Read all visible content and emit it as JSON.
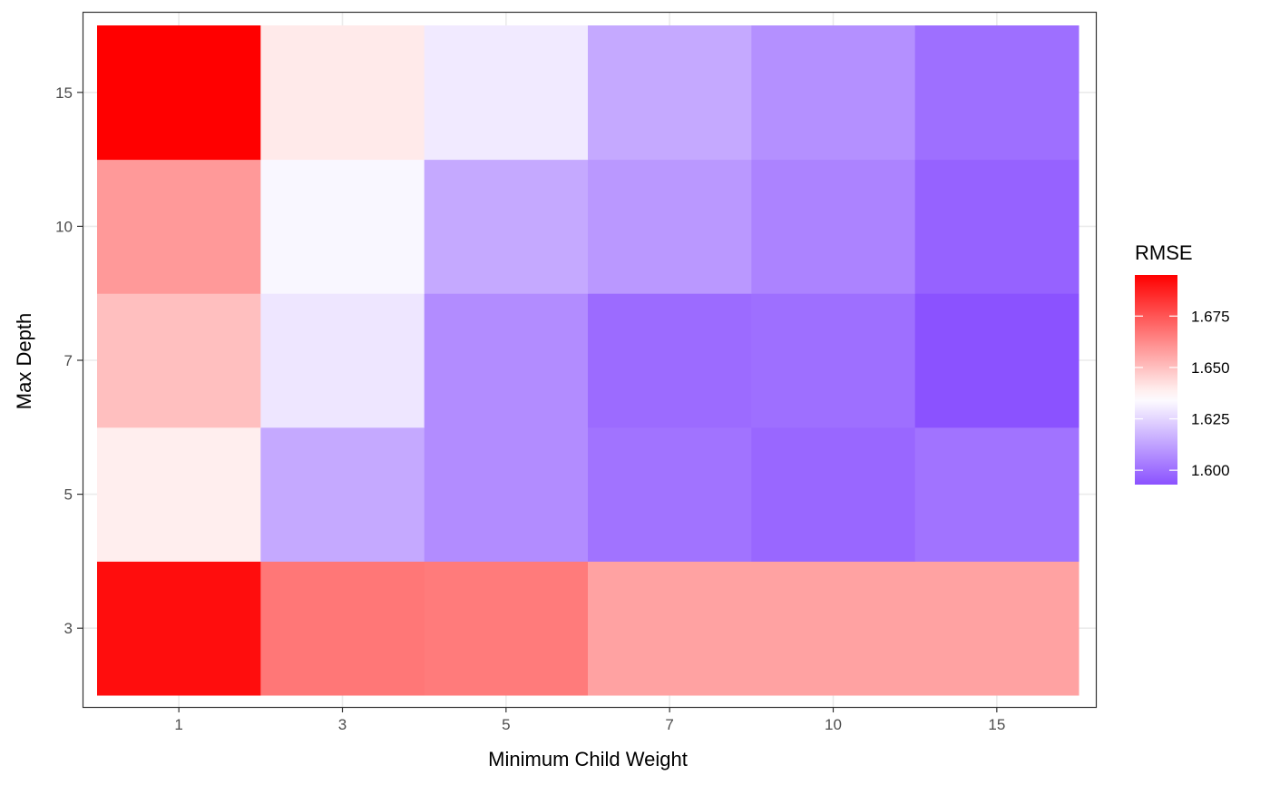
{
  "chart_data": {
    "type": "heatmap",
    "title": "",
    "xlabel": "Minimum Child Weight",
    "ylabel": "Max Depth",
    "x_categories": [
      "1",
      "3",
      "5",
      "7",
      "10",
      "15"
    ],
    "y_categories": [
      "3",
      "5",
      "7",
      "10",
      "15"
    ],
    "values": [
      [
        1.692,
        1.667,
        1.666,
        1.657,
        1.657,
        1.657
      ],
      [
        1.639,
        1.614,
        1.607,
        1.601,
        1.598,
        1.601
      ],
      [
        1.65,
        1.629,
        1.607,
        1.599,
        1.6,
        1.593
      ],
      [
        1.659,
        1.633,
        1.614,
        1.61,
        1.605,
        1.597
      ],
      [
        1.695,
        1.64,
        1.63,
        1.614,
        1.608,
        1.6
      ]
    ],
    "legend": {
      "title": "RMSE",
      "position": "right",
      "ticks": [
        1.6,
        1.625,
        1.65,
        1.675
      ],
      "tick_labels": [
        "1.600",
        "1.625",
        "1.650",
        "1.675"
      ],
      "min": 1.593,
      "mid": 1.635,
      "max": 1.695
    },
    "colors": {
      "low": "#8B52FF",
      "mid": "#FFFFFF",
      "high": "#FF0000"
    },
    "grid": true
  }
}
